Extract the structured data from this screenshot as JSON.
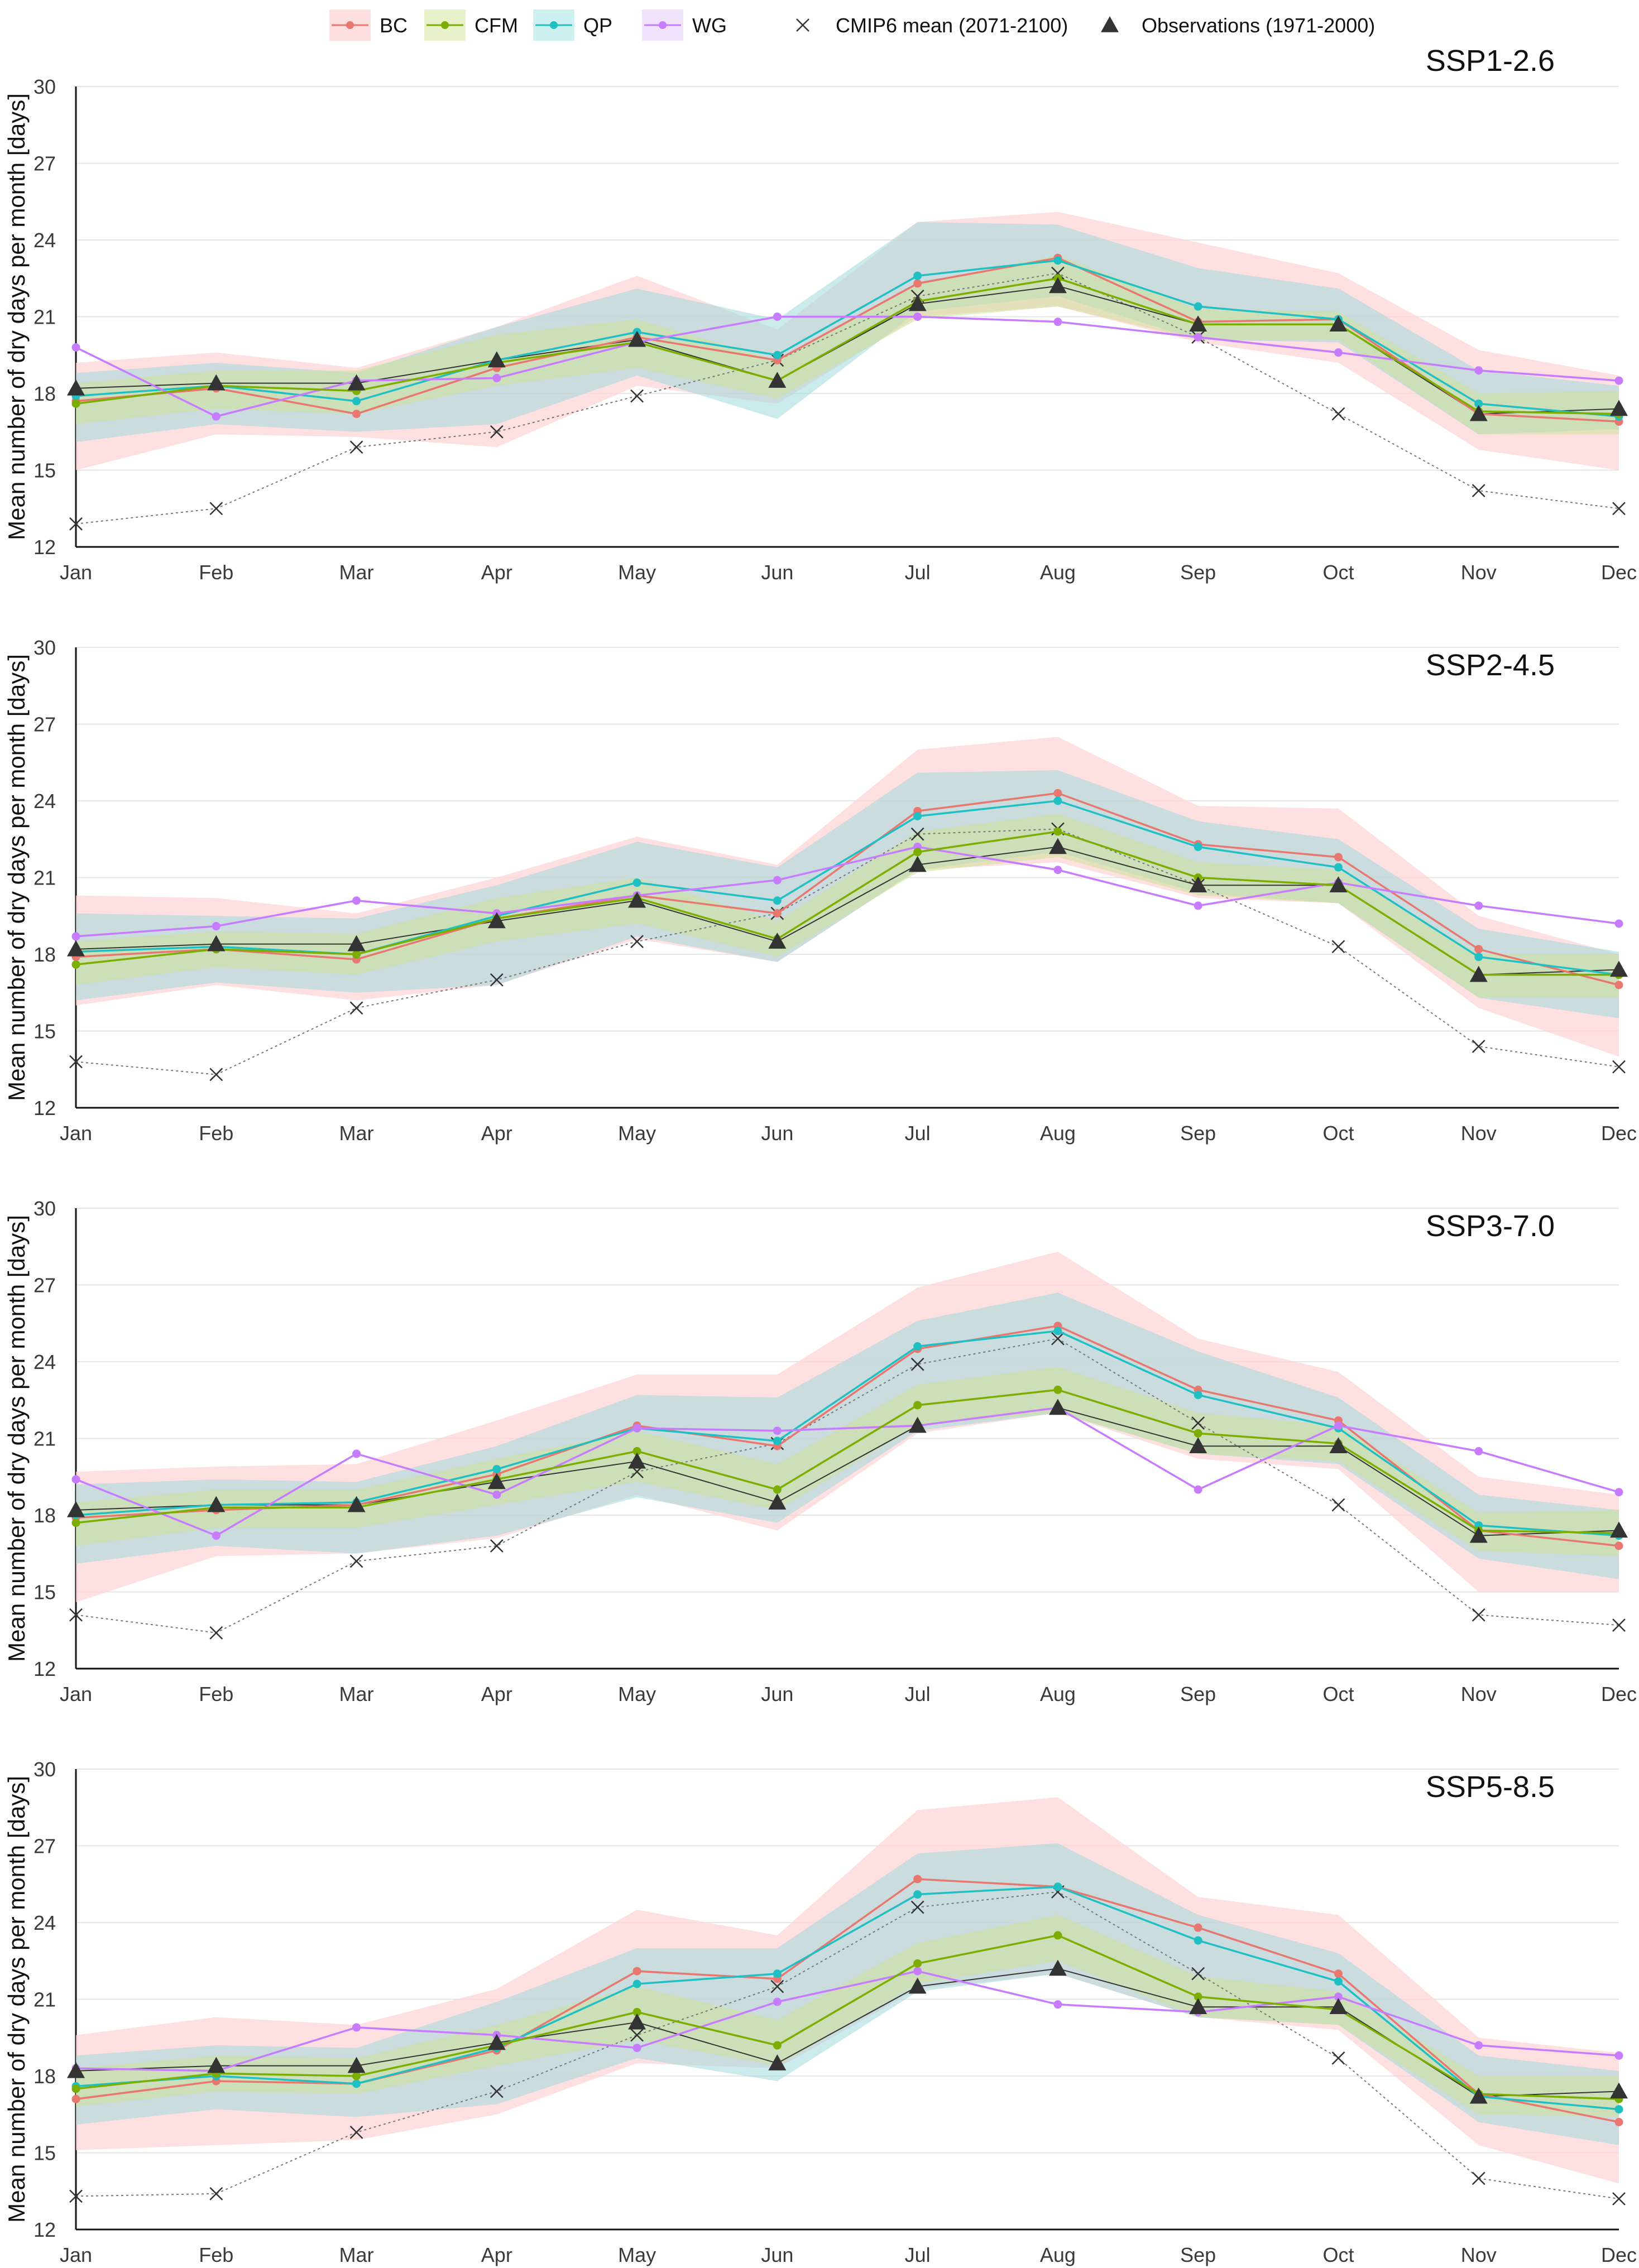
{
  "legend": {
    "items": [
      {
        "label": "BC",
        "color": "#E7776F",
        "band": "#FDDCDC"
      },
      {
        "label": "CFM",
        "color": "#7CAE00",
        "band": "#E5EFC4"
      },
      {
        "label": "QP",
        "color": "#1FBFC3",
        "band": "#C9EEF0"
      },
      {
        "label": "WG",
        "color": "#C77CFF",
        "band": "#EEE0FB"
      }
    ],
    "cmip_label": "CMIP6 mean (2071-2100)",
    "obs_label": "Observations (1971-2000)"
  },
  "chart_data": [
    {
      "type": "line",
      "title": "SSP1-2.6",
      "ylabel": "Mean number of dry days per month [days]",
      "categories": [
        "Jan",
        "Feb",
        "Mar",
        "Apr",
        "May",
        "Jun",
        "Jul",
        "Aug",
        "Sep",
        "Oct",
        "Nov",
        "Dec"
      ],
      "ylim": [
        12,
        30
      ],
      "yticks": [
        12,
        15,
        18,
        21,
        24,
        27,
        30
      ],
      "series": [
        {
          "name": "BC",
          "values": [
            17.7,
            18.2,
            17.2,
            19.0,
            20.2,
            19.3,
            22.3,
            23.3,
            20.8,
            20.9,
            17.2,
            16.9
          ],
          "lower": [
            15.0,
            16.4,
            16.3,
            15.9,
            18.3,
            17.6,
            21.0,
            21.4,
            20.0,
            19.2,
            15.8,
            15.0
          ],
          "upper": [
            19.2,
            19.6,
            19.0,
            20.6,
            22.6,
            20.5,
            24.7,
            25.1,
            23.9,
            22.7,
            19.7,
            18.7
          ]
        },
        {
          "name": "CFM",
          "values": [
            17.6,
            18.3,
            18.1,
            19.2,
            20.0,
            18.5,
            21.6,
            22.5,
            20.7,
            20.7,
            17.3,
            17.2
          ],
          "lower": [
            16.8,
            17.4,
            17.2,
            18.3,
            19.0,
            17.8,
            20.9,
            21.4,
            20.1,
            20.1,
            16.4,
            16.4
          ],
          "upper": [
            18.4,
            18.9,
            18.9,
            20.3,
            20.9,
            19.3,
            22.3,
            23.4,
            21.3,
            21.2,
            18.0,
            18.1
          ]
        },
        {
          "name": "QP",
          "values": [
            17.9,
            18.3,
            17.7,
            19.3,
            20.4,
            19.5,
            22.6,
            23.2,
            21.4,
            20.9,
            17.6,
            17.1
          ],
          "lower": [
            16.1,
            16.8,
            16.5,
            16.8,
            18.7,
            17.0,
            21.2,
            21.8,
            20.1,
            20.0,
            16.4,
            16.6
          ],
          "upper": [
            18.8,
            19.2,
            18.8,
            20.6,
            22.1,
            20.9,
            24.7,
            24.6,
            22.9,
            22.1,
            18.9,
            18.3
          ]
        },
        {
          "name": "WG",
          "values": [
            19.8,
            17.1,
            18.5,
            18.6,
            20.0,
            21.0,
            21.0,
            20.8,
            20.2,
            19.6,
            18.9,
            18.5
          ]
        }
      ],
      "cmip6_mean": [
        12.9,
        13.5,
        15.9,
        16.5,
        17.9,
        19.3,
        21.8,
        22.7,
        20.2,
        17.2,
        14.2,
        13.5
      ],
      "observations": [
        18.2,
        18.4,
        18.4,
        19.3,
        20.1,
        18.5,
        21.5,
        22.2,
        20.7,
        20.7,
        17.2,
        17.4
      ]
    },
    {
      "type": "line",
      "title": "SSP2-4.5",
      "ylabel": "Mean number of dry days per month [days]",
      "categories": [
        "Jan",
        "Feb",
        "Mar",
        "Apr",
        "May",
        "Jun",
        "Jul",
        "Aug",
        "Sep",
        "Oct",
        "Nov",
        "Dec"
      ],
      "ylim": [
        12,
        30
      ],
      "yticks": [
        12,
        15,
        18,
        21,
        24,
        27,
        30
      ],
      "series": [
        {
          "name": "BC",
          "values": [
            17.9,
            18.2,
            17.8,
            19.4,
            20.3,
            19.6,
            23.6,
            24.3,
            22.3,
            21.8,
            18.2,
            16.8
          ],
          "lower": [
            16.0,
            16.8,
            16.2,
            16.8,
            18.6,
            17.7,
            21.3,
            21.6,
            20.2,
            20.0,
            15.9,
            14.0
          ],
          "upper": [
            20.3,
            20.2,
            19.6,
            21.0,
            22.6,
            21.5,
            26.0,
            26.5,
            23.8,
            23.7,
            19.5,
            18.0
          ]
        },
        {
          "name": "CFM",
          "values": [
            17.6,
            18.2,
            18.0,
            19.4,
            20.2,
            18.6,
            22.0,
            22.8,
            21.0,
            20.7,
            17.2,
            17.2
          ],
          "lower": [
            16.8,
            17.5,
            17.2,
            18.5,
            19.2,
            17.9,
            21.2,
            21.8,
            20.3,
            20.0,
            16.3,
            16.3
          ],
          "upper": [
            18.5,
            18.9,
            18.8,
            20.2,
            21.0,
            19.3,
            22.8,
            23.5,
            21.6,
            21.3,
            18.0,
            18.0
          ]
        },
        {
          "name": "QP",
          "values": [
            18.1,
            18.3,
            18.0,
            19.5,
            20.8,
            20.1,
            23.4,
            24.0,
            22.2,
            21.4,
            17.9,
            17.2
          ],
          "lower": [
            16.2,
            16.9,
            16.5,
            16.8,
            18.7,
            17.7,
            21.3,
            22.0,
            20.4,
            20.0,
            16.3,
            15.5
          ],
          "upper": [
            19.6,
            19.5,
            19.4,
            20.7,
            22.4,
            21.4,
            25.1,
            25.2,
            23.2,
            22.5,
            19.0,
            18.1
          ]
        },
        {
          "name": "WG",
          "values": [
            18.7,
            19.1,
            20.1,
            19.6,
            20.3,
            20.9,
            22.2,
            21.3,
            19.9,
            20.8,
            19.9,
            19.2
          ]
        }
      ],
      "cmip6_mean": [
        13.8,
        13.3,
        15.9,
        17.0,
        18.5,
        19.6,
        22.7,
        22.9,
        20.7,
        18.3,
        14.4,
        13.6
      ],
      "observations": [
        18.2,
        18.4,
        18.4,
        19.3,
        20.1,
        18.5,
        21.5,
        22.2,
        20.7,
        20.7,
        17.2,
        17.4
      ]
    },
    {
      "type": "line",
      "title": "SSP3-7.0",
      "ylabel": "Mean number of dry days per month [days]",
      "categories": [
        "Jan",
        "Feb",
        "Mar",
        "Apr",
        "May",
        "Jun",
        "Jul",
        "Aug",
        "Sep",
        "Oct",
        "Nov",
        "Dec"
      ],
      "ylim": [
        12,
        30
      ],
      "yticks": [
        12,
        15,
        18,
        21,
        24,
        27,
        30
      ],
      "series": [
        {
          "name": "BC",
          "values": [
            17.9,
            18.2,
            18.4,
            19.6,
            21.5,
            20.7,
            24.5,
            25.4,
            22.9,
            21.7,
            17.4,
            16.8
          ],
          "lower": [
            14.6,
            16.4,
            16.5,
            17.1,
            18.8,
            17.4,
            21.2,
            22.0,
            20.2,
            19.8,
            15.0,
            15.0
          ],
          "upper": [
            19.7,
            19.9,
            20.0,
            21.7,
            23.5,
            23.5,
            26.9,
            28.3,
            24.9,
            23.6,
            19.5,
            18.8
          ]
        },
        {
          "name": "CFM",
          "values": [
            17.7,
            18.3,
            18.3,
            19.4,
            20.5,
            19.0,
            22.3,
            22.9,
            21.2,
            20.8,
            17.4,
            17.3
          ],
          "lower": [
            16.8,
            17.5,
            17.5,
            18.4,
            19.3,
            18.2,
            21.5,
            22.0,
            20.4,
            20.1,
            16.6,
            16.4
          ],
          "upper": [
            18.5,
            19.0,
            19.0,
            20.2,
            21.3,
            20.0,
            23.1,
            23.8,
            22.0,
            21.5,
            18.1,
            18.2
          ]
        },
        {
          "name": "QP",
          "values": [
            18.0,
            18.4,
            18.5,
            19.8,
            21.4,
            20.9,
            24.6,
            25.2,
            22.7,
            21.4,
            17.6,
            17.2
          ],
          "lower": [
            16.1,
            16.8,
            16.5,
            17.2,
            18.7,
            17.7,
            21.3,
            22.0,
            20.4,
            20.0,
            16.3,
            15.5
          ],
          "upper": [
            19.2,
            19.4,
            19.3,
            20.7,
            22.7,
            22.6,
            25.6,
            26.7,
            24.4,
            22.6,
            18.8,
            18.2
          ]
        },
        {
          "name": "WG",
          "values": [
            19.4,
            17.2,
            20.4,
            18.8,
            21.4,
            21.3,
            21.5,
            22.2,
            19.0,
            21.5,
            20.5,
            18.9
          ]
        }
      ],
      "cmip6_mean": [
        14.1,
        13.4,
        16.2,
        16.8,
        19.7,
        20.8,
        23.9,
        24.9,
        21.6,
        18.4,
        14.1,
        13.7
      ],
      "observations": [
        18.2,
        18.4,
        18.4,
        19.3,
        20.1,
        18.5,
        21.5,
        22.2,
        20.7,
        20.7,
        17.2,
        17.4
      ]
    },
    {
      "type": "line",
      "title": "SSP5-8.5",
      "ylabel": "Mean number of dry days per month [days]",
      "categories": [
        "Jan",
        "Feb",
        "Mar",
        "Apr",
        "May",
        "Jun",
        "Jul",
        "Aug",
        "Sep",
        "Oct",
        "Nov",
        "Dec"
      ],
      "ylim": [
        12,
        30
      ],
      "yticks": [
        12,
        15,
        18,
        21,
        24,
        27,
        30
      ],
      "series": [
        {
          "name": "BC",
          "values": [
            17.1,
            17.8,
            17.7,
            19.0,
            22.1,
            21.8,
            25.7,
            25.4,
            23.8,
            22.0,
            17.3,
            16.2
          ],
          "lower": [
            15.1,
            15.3,
            15.5,
            16.5,
            18.5,
            18.3,
            21.4,
            22.0,
            20.3,
            19.8,
            15.3,
            13.8
          ],
          "upper": [
            19.6,
            20.3,
            20.0,
            21.4,
            24.5,
            23.5,
            28.4,
            28.9,
            25.0,
            24.3,
            19.5,
            18.9
          ]
        },
        {
          "name": "CFM",
          "values": [
            17.5,
            18.1,
            18.0,
            19.2,
            20.5,
            19.2,
            22.4,
            23.5,
            21.1,
            20.6,
            17.3,
            17.1
          ],
          "lower": [
            16.8,
            17.4,
            17.3,
            18.4,
            19.4,
            18.4,
            21.6,
            22.5,
            20.3,
            20.0,
            16.5,
            16.4
          ],
          "upper": [
            18.3,
            18.8,
            18.7,
            20.0,
            21.5,
            20.2,
            23.2,
            24.3,
            21.9,
            21.3,
            18.0,
            18.0
          ]
        },
        {
          "name": "QP",
          "values": [
            17.6,
            18.0,
            17.7,
            19.1,
            21.6,
            22.0,
            25.1,
            25.4,
            23.3,
            21.7,
            17.2,
            16.7
          ],
          "lower": [
            16.1,
            16.7,
            16.4,
            16.9,
            18.7,
            17.8,
            21.3,
            22.0,
            20.3,
            20.0,
            16.2,
            15.3
          ],
          "upper": [
            18.8,
            19.2,
            19.1,
            20.9,
            23.0,
            23.0,
            26.7,
            27.1,
            24.3,
            22.8,
            18.8,
            18.2
          ]
        },
        {
          "name": "WG",
          "values": [
            18.3,
            18.2,
            19.9,
            19.6,
            19.1,
            20.9,
            22.1,
            20.8,
            20.5,
            21.1,
            19.2,
            18.8
          ]
        }
      ],
      "cmip6_mean": [
        13.3,
        13.4,
        15.8,
        17.4,
        19.6,
        21.5,
        24.6,
        25.2,
        22.0,
        18.7,
        14.0,
        13.2
      ],
      "observations": [
        18.2,
        18.4,
        18.4,
        19.3,
        20.1,
        18.5,
        21.5,
        22.2,
        20.7,
        20.7,
        17.2,
        17.4
      ]
    }
  ]
}
